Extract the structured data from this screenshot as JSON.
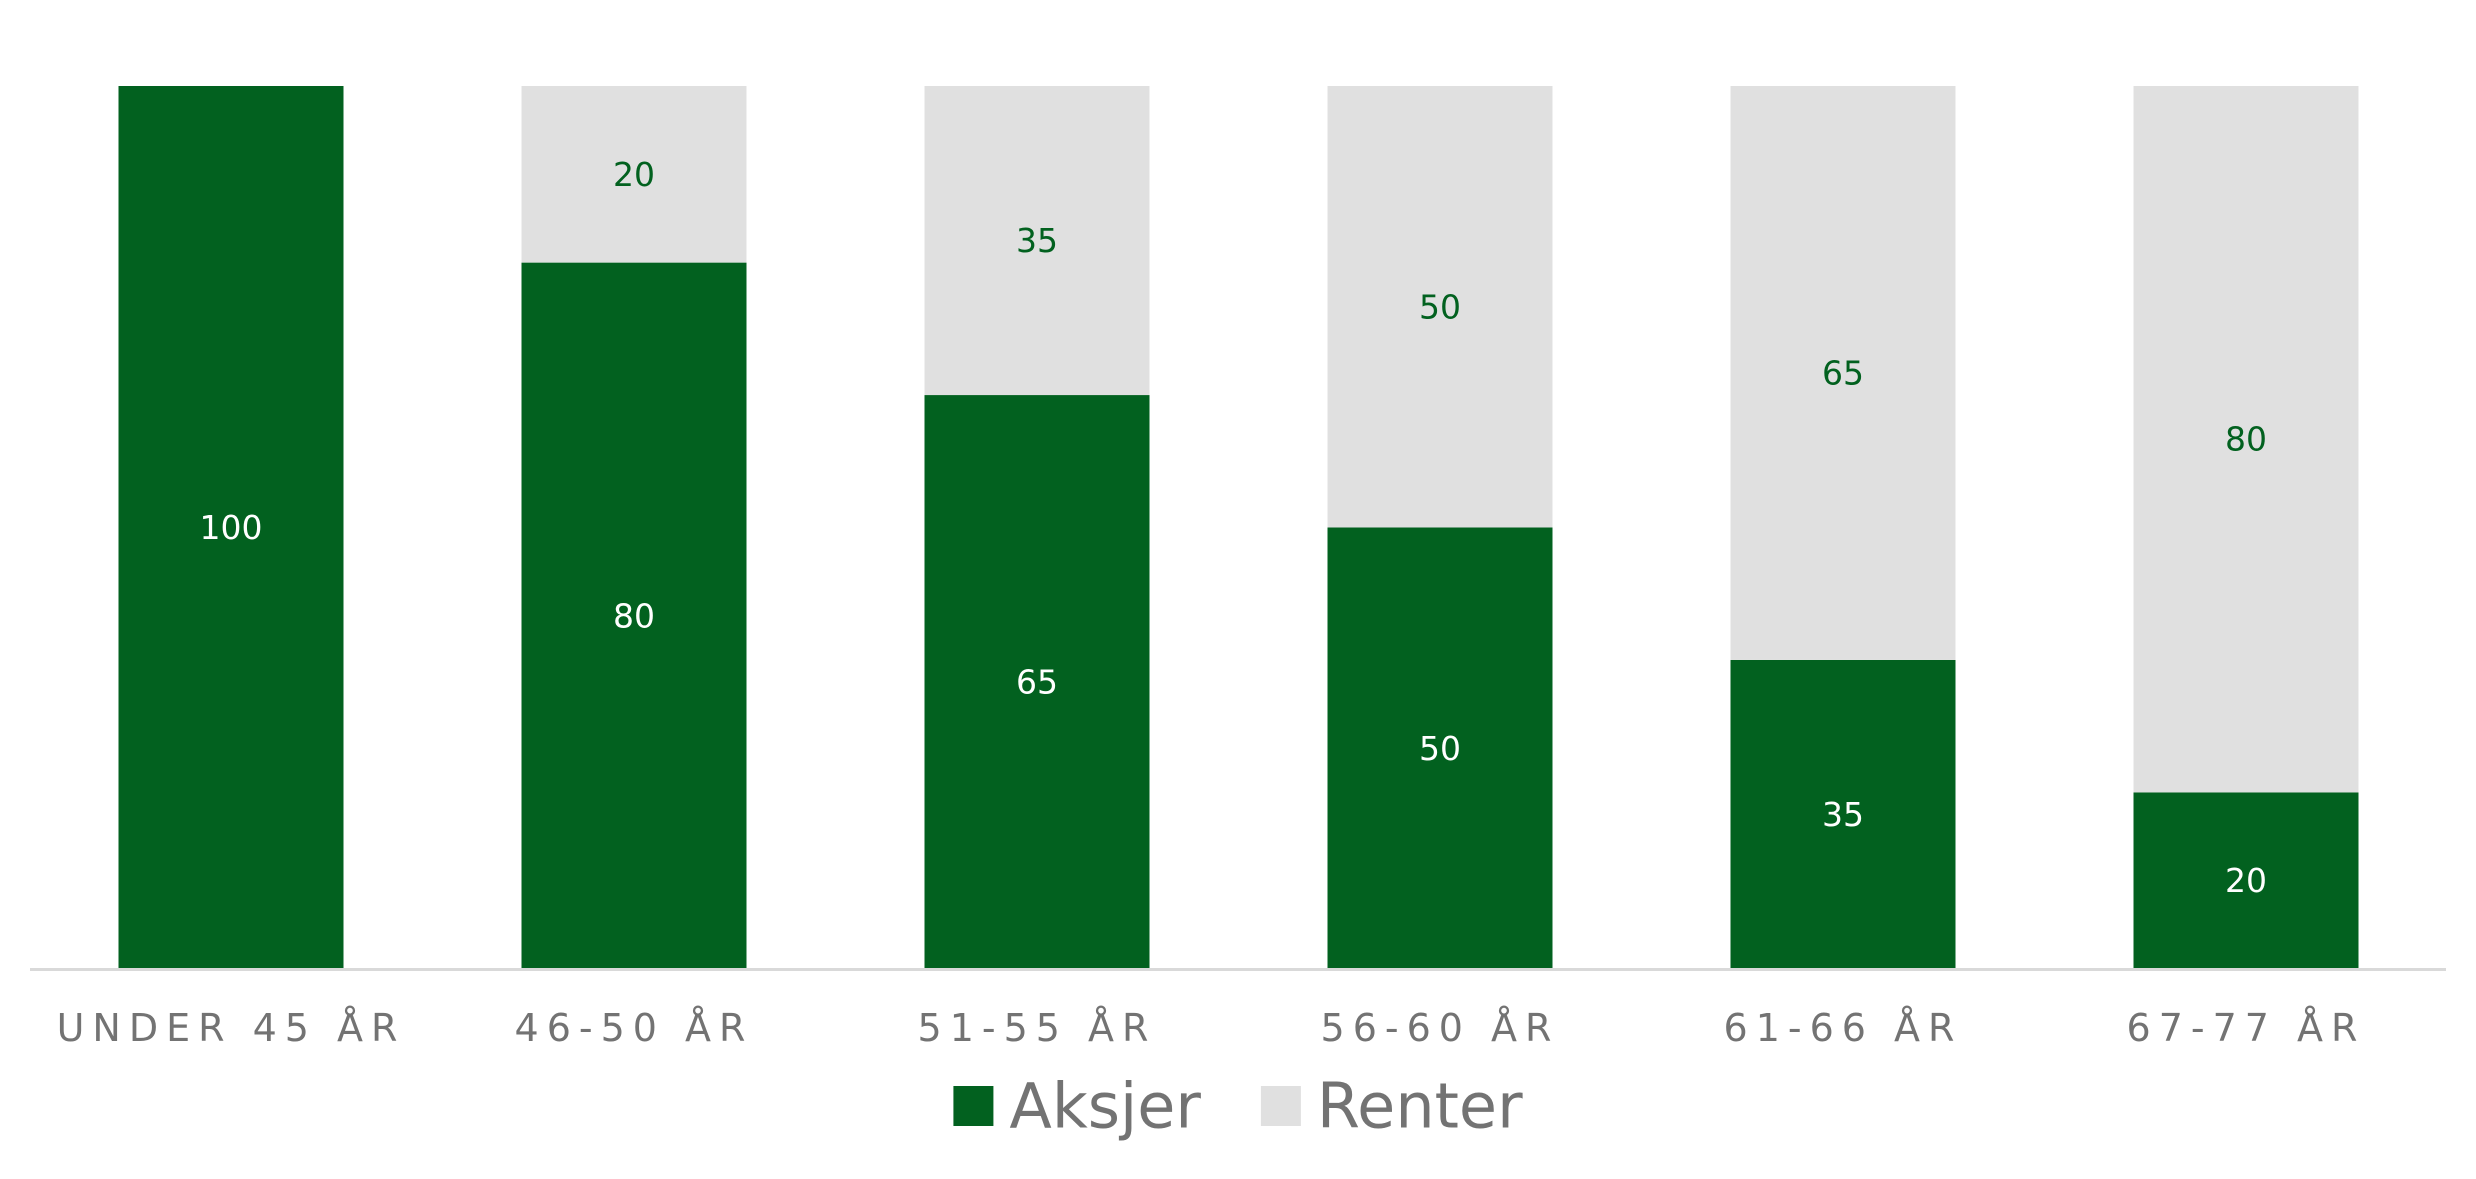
{
  "chart_data": {
    "type": "bar",
    "stacked": true,
    "categories": [
      "UNDER 45 ÅR",
      "46-50 ÅR",
      "51-55 ÅR",
      "56-60 ÅR",
      "61-66 ÅR",
      "67-77 ÅR"
    ],
    "series": [
      {
        "name": "Aksjer",
        "color": "#02611f",
        "label_color": "#ffffff",
        "values": [
          100,
          80,
          65,
          50,
          35,
          20
        ]
      },
      {
        "name": "Renter",
        "color": "#e0e0e0",
        "label_color": "#02611f",
        "values": [
          0,
          20,
          35,
          50,
          65,
          80
        ]
      }
    ],
    "ylim": [
      0,
      100
    ],
    "grid": false,
    "legend_position": "bottom",
    "axis_color": "#d9d9d9"
  }
}
